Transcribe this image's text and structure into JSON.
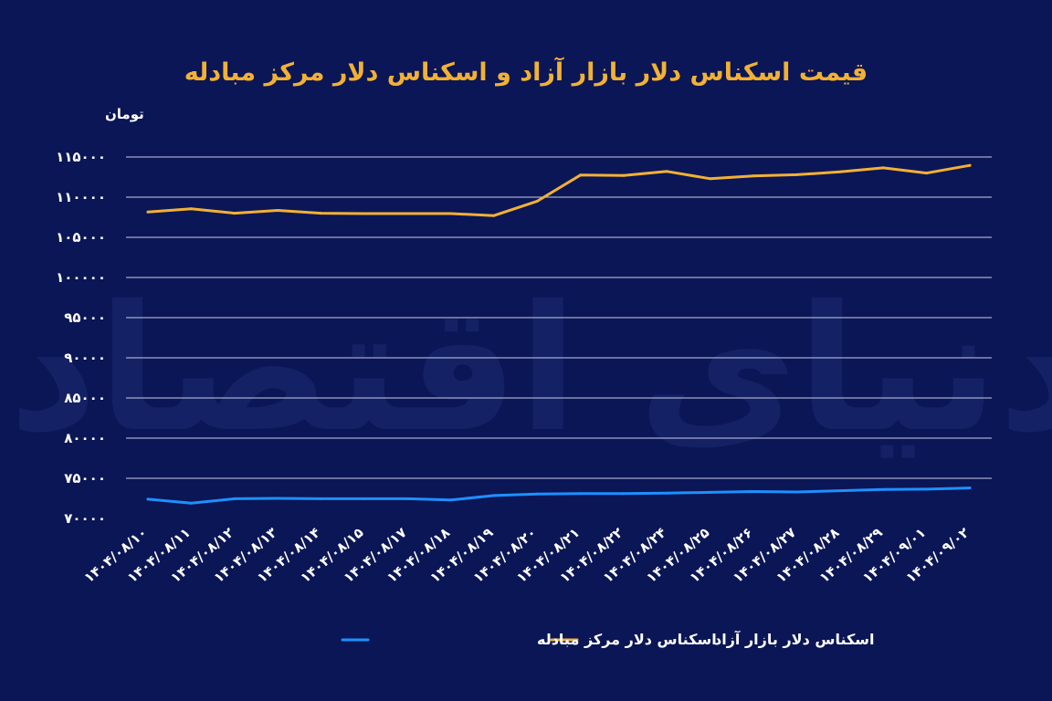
{
  "chart_data": {
    "type": "line",
    "title": "قیمت اسکناس دلار بازار آزاد و اسکناس دلار مرکز مبادله",
    "ylabel": "تومان",
    "xlabel": "",
    "ylim": [
      70000,
      115000
    ],
    "y_ticks": [
      70000,
      75000,
      80000,
      85000,
      90000,
      95000,
      100000,
      105000,
      110000,
      115000
    ],
    "y_tick_labels": [
      "۷۰۰۰۰",
      "۷۵۰۰۰",
      "۸۰۰۰۰",
      "۸۵۰۰۰",
      "۹۰۰۰۰",
      "۹۵۰۰۰",
      "۱۰۰۰۰۰",
      "۱۰۵۰۰۰",
      "۱۱۰۰۰۰",
      "۱۱۵۰۰۰"
    ],
    "categories": [
      "۱۴۰۴/۰۸/۱۰",
      "۱۴۰۴/۰۸/۱۱",
      "۱۴۰۴/۰۸/۱۲",
      "۱۴۰۴/۰۸/۱۳",
      "۱۴۰۴/۰۸/۱۴",
      "۱۴۰۴/۰۸/۱۵",
      "۱۴۰۴/۰۸/۱۷",
      "۱۴۰۴/۰۸/۱۸",
      "۱۴۰۴/۰۸/۱۹",
      "۱۴۰۴/۰۸/۲۰",
      "۱۴۰۴/۰۸/۲۱",
      "۱۴۰۴/۰۸/۲۲",
      "۱۴۰۴/۰۸/۲۴",
      "۱۴۰۴/۰۸/۲۵",
      "۱۴۰۴/۰۸/۲۶",
      "۱۴۰۴/۰۸/۲۷",
      "۱۴۰۴/۰۸/۲۸",
      "۱۴۰۴/۰۸/۲۹",
      "۱۴۰۴/۰۹/۰۱",
      "۱۴۰۴/۰۹/۰۲"
    ],
    "series": [
      {
        "name": "اسکناس دلار بازار آزاد",
        "color": "#f2b134",
        "values": [
          108150,
          108550,
          108000,
          108350,
          108000,
          107950,
          107950,
          107950,
          107700,
          109500,
          112750,
          112700,
          113200,
          112300,
          112650,
          112800,
          113150,
          113650,
          113000,
          113950
        ]
      },
      {
        "name": "اسکناس دلار مرکز مبادله",
        "color": "#1e90ff",
        "values": [
          72400,
          71900,
          72450,
          72500,
          72450,
          72450,
          72450,
          72300,
          72850,
          73050,
          73100,
          73100,
          73150,
          73250,
          73350,
          73300,
          73450,
          73600,
          73650,
          73800
        ]
      }
    ],
    "grid": true,
    "legend_position": "bottom",
    "legend": [
      {
        "label": "اسکناس دلار بازار آزاد",
        "color": "#f2b134"
      },
      {
        "label": "اسکناس دلار مرکز مبادله",
        "color": "#1e90ff"
      }
    ]
  },
  "watermark": "دنیای اقتصاد"
}
